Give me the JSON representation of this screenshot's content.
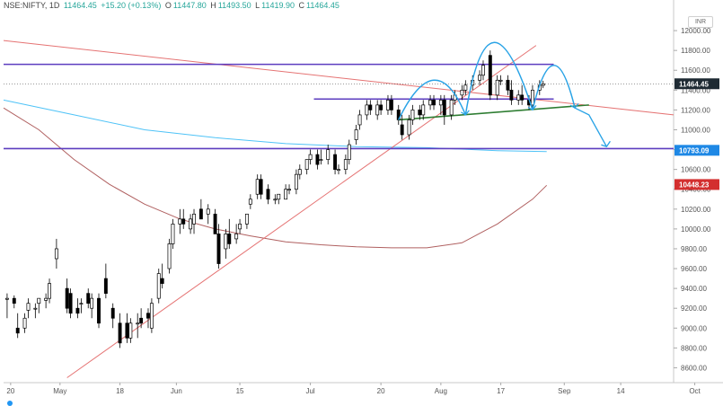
{
  "header": {
    "symbol": "NSE:NIFTY, 1D",
    "price": "11464.45",
    "change": "+15.20 (+0.13%)",
    "open_label": "O",
    "open": "11447.80",
    "high_label": "H",
    "high": "11493.50",
    "low_label": "L",
    "low": "11419.90",
    "close_label": "C",
    "close": "11464.45",
    "currency": "INR"
  },
  "colors": {
    "up_fill": "#ffffff",
    "down_fill": "#000000",
    "candle_stroke": "#000000",
    "ma_blue": "#4fc3f7",
    "ma_brown": "#b06060",
    "trend_red": "#e57373",
    "horizontal_purple": "#5c3dbf",
    "neckline_green": "#2e7d32",
    "arc_blue": "#29a3e6",
    "label_dark": "#1e2a33",
    "label_blue": "#1e88e5",
    "label_red": "#d32f2f"
  },
  "chart_data": {
    "type": "candlestick",
    "y_axis": {
      "range": [
        8450,
        12200
      ],
      "ticks": [
        8600,
        8800,
        9000,
        9200,
        9400,
        9600,
        9800,
        10000,
        10200,
        10400,
        10600,
        10800,
        11000,
        11200,
        11400,
        11600,
        11800,
        12000
      ]
    },
    "x_axis": {
      "range": [
        0,
        190
      ],
      "ticks": [
        {
          "label": "20",
          "x": 2
        },
        {
          "label": "May",
          "x": 16
        },
        {
          "label": "18",
          "x": 33
        },
        {
          "label": "Jun",
          "x": 49
        },
        {
          "label": "15",
          "x": 67
        },
        {
          "label": "Jul",
          "x": 87
        },
        {
          "label": "20",
          "x": 107
        },
        {
          "label": "Aug",
          "x": 124
        },
        {
          "label": "17",
          "x": 141
        },
        {
          "label": "Sep",
          "x": 159
        },
        {
          "label": "14",
          "x": 175
        },
        {
          "label": "Oct",
          "x": 196
        }
      ]
    },
    "candles": [
      {
        "x": 1,
        "o": 9290,
        "h": 9350,
        "l": 9100,
        "c": 9300
      },
      {
        "x": 3,
        "o": 9300,
        "h": 9330,
        "l": 9200,
        "c": 9250
      },
      {
        "x": 4,
        "o": 9000,
        "h": 9150,
        "l": 8900,
        "c": 8950
      },
      {
        "x": 6,
        "o": 9000,
        "h": 9150,
        "l": 8950,
        "c": 9100
      },
      {
        "x": 7,
        "o": 9180,
        "h": 9300,
        "l": 9100,
        "c": 9250
      },
      {
        "x": 9,
        "o": 9200,
        "h": 9250,
        "l": 9100,
        "c": 9200
      },
      {
        "x": 10,
        "o": 9250,
        "h": 9300,
        "l": 9150,
        "c": 9300
      },
      {
        "x": 12,
        "o": 9280,
        "h": 9350,
        "l": 9200,
        "c": 9300
      },
      {
        "x": 13,
        "o": 9300,
        "h": 9500,
        "l": 9250,
        "c": 9450
      },
      {
        "x": 15,
        "o": 9700,
        "h": 9900,
        "l": 9600,
        "c": 9800
      },
      {
        "x": 18,
        "o": 9400,
        "h": 9500,
        "l": 9150,
        "c": 9200
      },
      {
        "x": 19,
        "o": 9350,
        "h": 9400,
        "l": 9100,
        "c": 9150
      },
      {
        "x": 21,
        "o": 9200,
        "h": 9300,
        "l": 9100,
        "c": 9150
      },
      {
        "x": 22,
        "o": 9250,
        "h": 9300,
        "l": 9150,
        "c": 9250
      },
      {
        "x": 24,
        "o": 9350,
        "h": 9400,
        "l": 9200,
        "c": 9250
      },
      {
        "x": 25,
        "o": 9200,
        "h": 9350,
        "l": 9100,
        "c": 9300
      },
      {
        "x": 27,
        "o": 9300,
        "h": 9350,
        "l": 9000,
        "c": 9050
      },
      {
        "x": 29,
        "o": 9500,
        "h": 9650,
        "l": 9300,
        "c": 9350
      },
      {
        "x": 31,
        "o": 9200,
        "h": 9250,
        "l": 9000,
        "c": 9100
      },
      {
        "x": 33,
        "o": 9050,
        "h": 9150,
        "l": 8800,
        "c": 8850
      },
      {
        "x": 35,
        "o": 9050,
        "h": 9150,
        "l": 8850,
        "c": 8900
      },
      {
        "x": 36,
        "o": 8900,
        "h": 9100,
        "l": 8850,
        "c": 9050
      },
      {
        "x": 38,
        "o": 9050,
        "h": 9150,
        "l": 8900,
        "c": 9050
      },
      {
        "x": 39,
        "o": 9100,
        "h": 9200,
        "l": 9000,
        "c": 9050
      },
      {
        "x": 41,
        "o": 9150,
        "h": 9200,
        "l": 9000,
        "c": 9100
      },
      {
        "x": 42,
        "o": 9000,
        "h": 9300,
        "l": 8950,
        "c": 9250
      },
      {
        "x": 44,
        "o": 9300,
        "h": 9600,
        "l": 9250,
        "c": 9550
      },
      {
        "x": 45,
        "o": 9500,
        "h": 9650,
        "l": 9400,
        "c": 9450
      },
      {
        "x": 47,
        "o": 9600,
        "h": 9900,
        "l": 9550,
        "c": 9850
      },
      {
        "x": 48,
        "o": 9850,
        "h": 10100,
        "l": 9800,
        "c": 10050
      },
      {
        "x": 50,
        "o": 10050,
        "h": 10200,
        "l": 9950,
        "c": 10100
      },
      {
        "x": 51,
        "o": 10100,
        "h": 10200,
        "l": 10000,
        "c": 10050
      },
      {
        "x": 53,
        "o": 10000,
        "h": 10150,
        "l": 9950,
        "c": 10100
      },
      {
        "x": 54,
        "o": 10050,
        "h": 10200,
        "l": 9950,
        "c": 10150
      },
      {
        "x": 56,
        "o": 10200,
        "h": 10300,
        "l": 10100,
        "c": 10100
      },
      {
        "x": 58,
        "o": 10150,
        "h": 10250,
        "l": 10050,
        "c": 10200
      },
      {
        "x": 60,
        "o": 10150,
        "h": 10200,
        "l": 9950,
        "c": 9950
      },
      {
        "x": 61,
        "o": 9950,
        "h": 10050,
        "l": 9600,
        "c": 9650
      },
      {
        "x": 63,
        "o": 9800,
        "h": 10000,
        "l": 9700,
        "c": 9950
      },
      {
        "x": 64,
        "o": 9950,
        "h": 10100,
        "l": 9800,
        "c": 9850
      },
      {
        "x": 66,
        "o": 9900,
        "h": 10050,
        "l": 9850,
        "c": 9950
      },
      {
        "x": 67,
        "o": 10000,
        "h": 10100,
        "l": 9950,
        "c": 10050
      },
      {
        "x": 69,
        "o": 10050,
        "h": 10150,
        "l": 10000,
        "c": 10150
      },
      {
        "x": 70,
        "o": 10250,
        "h": 10350,
        "l": 10200,
        "c": 10300
      },
      {
        "x": 72,
        "o": 10350,
        "h": 10550,
        "l": 10300,
        "c": 10500
      },
      {
        "x": 73,
        "o": 10500,
        "h": 10550,
        "l": 10300,
        "c": 10350
      },
      {
        "x": 75,
        "o": 10400,
        "h": 10450,
        "l": 10250,
        "c": 10300
      },
      {
        "x": 77,
        "o": 10300,
        "h": 10350,
        "l": 10250,
        "c": 10300
      },
      {
        "x": 78,
        "o": 10300,
        "h": 10350,
        "l": 10250,
        "c": 10350
      },
      {
        "x": 80,
        "o": 10300,
        "h": 10450,
        "l": 10300,
        "c": 10400
      },
      {
        "x": 81,
        "o": 10400,
        "h": 10450,
        "l": 10350,
        "c": 10400
      },
      {
        "x": 83,
        "o": 10400,
        "h": 10600,
        "l": 10350,
        "c": 10550
      },
      {
        "x": 84,
        "o": 10550,
        "h": 10650,
        "l": 10500,
        "c": 10600
      },
      {
        "x": 86,
        "o": 10600,
        "h": 10700,
        "l": 10550,
        "c": 10700
      },
      {
        "x": 87,
        "o": 10700,
        "h": 10800,
        "l": 10650,
        "c": 10750
      },
      {
        "x": 89,
        "o": 10750,
        "h": 10800,
        "l": 10600,
        "c": 10650
      },
      {
        "x": 90,
        "o": 10700,
        "h": 10800,
        "l": 10650,
        "c": 10700
      },
      {
        "x": 92,
        "o": 10700,
        "h": 10850,
        "l": 10650,
        "c": 10800
      },
      {
        "x": 94,
        "o": 10750,
        "h": 10800,
        "l": 10550,
        "c": 10600
      },
      {
        "x": 95,
        "o": 10600,
        "h": 10650,
        "l": 10550,
        "c": 10600
      },
      {
        "x": 97,
        "o": 10600,
        "h": 10750,
        "l": 10550,
        "c": 10700
      },
      {
        "x": 98,
        "o": 10700,
        "h": 10900,
        "l": 10650,
        "c": 10850
      },
      {
        "x": 100,
        "o": 10900,
        "h": 11050,
        "l": 10850,
        "c": 11000
      },
      {
        "x": 101,
        "o": 11050,
        "h": 11200,
        "l": 11000,
        "c": 11150
      },
      {
        "x": 103,
        "o": 11150,
        "h": 11300,
        "l": 11100,
        "c": 11250
      },
      {
        "x": 104,
        "o": 11250,
        "h": 11300,
        "l": 11150,
        "c": 11200
      },
      {
        "x": 106,
        "o": 11150,
        "h": 11300,
        "l": 11100,
        "c": 11250
      },
      {
        "x": 107,
        "o": 11250,
        "h": 11300,
        "l": 11150,
        "c": 11200
      },
      {
        "x": 109,
        "o": 11200,
        "h": 11350,
        "l": 11150,
        "c": 11300
      },
      {
        "x": 110,
        "o": 11300,
        "h": 11350,
        "l": 11150,
        "c": 11200
      },
      {
        "x": 112,
        "o": 11200,
        "h": 11250,
        "l": 11050,
        "c": 11100
      },
      {
        "x": 113,
        "o": 11050,
        "h": 11150,
        "l": 10900,
        "c": 10950
      },
      {
        "x": 115,
        "o": 10950,
        "h": 11150,
        "l": 10900,
        "c": 11100
      },
      {
        "x": 116,
        "o": 11100,
        "h": 11250,
        "l": 11050,
        "c": 11200
      },
      {
        "x": 118,
        "o": 11200,
        "h": 11250,
        "l": 11100,
        "c": 11150
      },
      {
        "x": 119,
        "o": 11150,
        "h": 11300,
        "l": 11100,
        "c": 11250
      },
      {
        "x": 121,
        "o": 11250,
        "h": 11350,
        "l": 11200,
        "c": 11300
      },
      {
        "x": 122,
        "o": 11300,
        "h": 11350,
        "l": 11200,
        "c": 11250
      },
      {
        "x": 124,
        "o": 11250,
        "h": 11350,
        "l": 11150,
        "c": 11300
      },
      {
        "x": 125,
        "o": 11300,
        "h": 11350,
        "l": 11050,
        "c": 11150
      },
      {
        "x": 127,
        "o": 11150,
        "h": 11350,
        "l": 11100,
        "c": 11300
      },
      {
        "x": 128,
        "o": 11300,
        "h": 11400,
        "l": 11250,
        "c": 11350
      },
      {
        "x": 130,
        "o": 11350,
        "h": 11450,
        "l": 11300,
        "c": 11400
      },
      {
        "x": 131,
        "o": 11400,
        "h": 11500,
        "l": 11350,
        "c": 11450
      },
      {
        "x": 133,
        "o": 11450,
        "h": 11550,
        "l": 11400,
        "c": 11500
      },
      {
        "x": 135,
        "o": 11500,
        "h": 11600,
        "l": 11450,
        "c": 11550
      },
      {
        "x": 136,
        "o": 11550,
        "h": 11700,
        "l": 11500,
        "c": 11650
      },
      {
        "x": 138,
        "o": 11750,
        "h": 11800,
        "l": 11300,
        "c": 11350
      },
      {
        "x": 140,
        "o": 11350,
        "h": 11550,
        "l": 11300,
        "c": 11500
      },
      {
        "x": 141,
        "o": 11500,
        "h": 11550,
        "l": 11450,
        "c": 11500
      },
      {
        "x": 143,
        "o": 11500,
        "h": 11550,
        "l": 11350,
        "c": 11400
      },
      {
        "x": 144,
        "o": 11400,
        "h": 11500,
        "l": 11250,
        "c": 11300
      },
      {
        "x": 146,
        "o": 11300,
        "h": 11400,
        "l": 11250,
        "c": 11350
      },
      {
        "x": 147,
        "o": 11350,
        "h": 11450,
        "l": 11250,
        "c": 11300
      },
      {
        "x": 149,
        "o": 11300,
        "h": 11350,
        "l": 11200,
        "c": 11250
      },
      {
        "x": 150,
        "o": 11250,
        "h": 11450,
        "l": 11200,
        "c": 11400
      },
      {
        "x": 152,
        "o": 11400,
        "h": 11500,
        "l": 11350,
        "c": 11450
      },
      {
        "x": 153,
        "o": 11448,
        "h": 11494,
        "l": 11420,
        "c": 11464
      }
    ],
    "moving_averages": [
      {
        "color": "#4fc3f7",
        "points": [
          [
            0,
            11300
          ],
          [
            20,
            11150
          ],
          [
            40,
            11000
          ],
          [
            60,
            10920
          ],
          [
            80,
            10860
          ],
          [
            100,
            10830
          ],
          [
            120,
            10820
          ],
          [
            140,
            10790
          ],
          [
            154,
            10780
          ]
        ]
      },
      {
        "color": "#b06060",
        "points": [
          [
            0,
            11220
          ],
          [
            10,
            11000
          ],
          [
            20,
            10700
          ],
          [
            30,
            10450
          ],
          [
            40,
            10250
          ],
          [
            50,
            10100
          ],
          [
            60,
            10000
          ],
          [
            70,
            9930
          ],
          [
            80,
            9870
          ],
          [
            90,
            9840
          ],
          [
            100,
            9820
          ],
          [
            110,
            9810
          ],
          [
            120,
            9810
          ],
          [
            130,
            9860
          ],
          [
            140,
            10050
          ],
          [
            150,
            10300
          ],
          [
            154,
            10440
          ]
        ]
      }
    ],
    "trend_lines": [
      {
        "kind": "support",
        "from": [
          18,
          8500
        ],
        "to": [
          151,
          11850
        ]
      },
      {
        "kind": "resistance",
        "from": [
          0,
          11900
        ],
        "to": [
          190,
          11150
        ]
      }
    ],
    "horizontal_lines": [
      {
        "price": 11660,
        "from": 0,
        "to": 156
      },
      {
        "price": 10810,
        "from": 0,
        "to": 190
      },
      {
        "price": 11310,
        "from": 88,
        "to": 156
      }
    ],
    "neckline": {
      "from": [
        112,
        11100
      ],
      "to": [
        166,
        11250
      ]
    },
    "arcs": [
      {
        "from": [
          112,
          11100
        ],
        "peak": [
          122,
          11500
        ],
        "to": [
          131,
          11150
        ]
      },
      {
        "from": [
          131,
          11150
        ],
        "peak": [
          139,
          11880
        ],
        "to": [
          150,
          11200
        ]
      },
      {
        "from": [
          150,
          11200
        ],
        "peak": [
          156,
          11650
        ],
        "to": [
          162,
          11220
        ]
      }
    ],
    "projection_arrow": {
      "points": [
        [
          162,
          11220
        ],
        [
          166,
          11150
        ],
        [
          171,
          10830
        ]
      ]
    },
    "price_labels": [
      {
        "value": "11464.45",
        "price": 11464,
        "style": "dark"
      },
      {
        "value": "10793.09",
        "price": 10793,
        "style": "blue"
      },
      {
        "value": "10448.23",
        "price": 10448,
        "style": "red"
      }
    ],
    "last_price_line": 11464
  }
}
